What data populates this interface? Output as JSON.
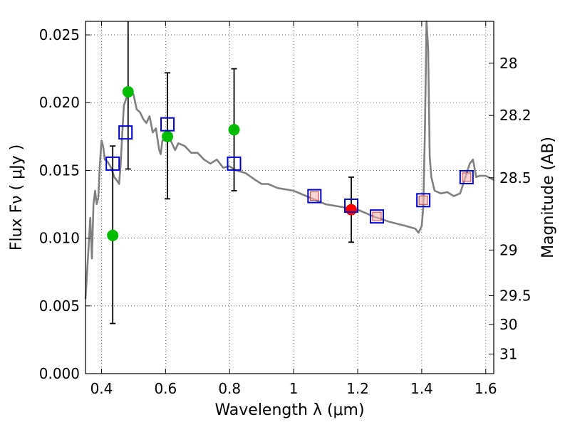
{
  "chart_data": {
    "type": "scatter",
    "xlabel": "Wavelength  λ (μm)",
    "ylabel": "Flux  Fν  ( μJy )",
    "y2label": "Magnitude (AB)",
    "xlim": [
      0.35,
      1.625
    ],
    "ylim": [
      0.0,
      0.026
    ],
    "grid": true,
    "x_ticks": [
      0.4,
      0.6,
      0.8,
      1.0,
      1.2,
      1.4,
      1.6
    ],
    "x_tick_labels": [
      "0.4",
      "0.6",
      "0.8",
      "1",
      "1.2",
      "1.4",
      "1.6"
    ],
    "y_ticks": [
      0.0,
      0.005,
      0.01,
      0.015,
      0.02,
      0.025
    ],
    "y_tick_labels": [
      "0.000",
      "0.005",
      "0.010",
      "0.015",
      "0.020",
      "0.025"
    ],
    "y2_ticks": [
      28,
      28.2,
      28.5,
      29,
      29.5,
      30,
      31
    ],
    "y2_tick_labels": [
      "28",
      "28.2",
      "28.5",
      "29",
      "29.5",
      "30",
      "31"
    ],
    "colors": {
      "model": "#808080",
      "detection": "#00bb00",
      "highlight": "#ff0000",
      "model_box": "#0000cc",
      "model_box_inner": "#cc4444",
      "errorbar": "#000000"
    },
    "series": [
      {
        "name": "model spectrum",
        "kind": "line",
        "x": [
          0.35,
          0.36,
          0.365,
          0.37,
          0.375,
          0.38,
          0.385,
          0.39,
          0.395,
          0.4,
          0.405,
          0.41,
          0.42,
          0.43,
          0.44,
          0.45,
          0.455,
          0.46,
          0.465,
          0.47,
          0.48,
          0.49,
          0.5,
          0.51,
          0.52,
          0.53,
          0.54,
          0.55,
          0.56,
          0.57,
          0.58,
          0.585,
          0.59,
          0.6,
          0.61,
          0.62,
          0.63,
          0.64,
          0.66,
          0.68,
          0.7,
          0.72,
          0.74,
          0.76,
          0.78,
          0.8,
          0.82,
          0.85,
          0.88,
          0.9,
          0.92,
          0.95,
          1.0,
          1.05,
          1.1,
          1.15,
          1.2,
          1.25,
          1.3,
          1.35,
          1.38,
          1.39,
          1.4,
          1.405,
          1.41,
          1.415,
          1.42,
          1.425,
          1.43,
          1.44,
          1.46,
          1.48,
          1.5,
          1.52,
          1.55,
          1.56,
          1.57,
          1.58,
          1.6,
          1.625
        ],
        "y": [
          0.0055,
          0.0095,
          0.0115,
          0.0085,
          0.0125,
          0.0135,
          0.0125,
          0.013,
          0.0155,
          0.0172,
          0.0168,
          0.0158,
          0.0156,
          0.0152,
          0.0145,
          0.0142,
          0.014,
          0.0155,
          0.0178,
          0.0198,
          0.0205,
          0.0208,
          0.0206,
          0.0195,
          0.0193,
          0.0188,
          0.0185,
          0.019,
          0.0178,
          0.0181,
          0.0165,
          0.0162,
          0.0172,
          0.0173,
          0.0175,
          0.017,
          0.0165,
          0.017,
          0.0168,
          0.0163,
          0.0163,
          0.0158,
          0.0155,
          0.0158,
          0.0152,
          0.0153,
          0.015,
          0.0148,
          0.0143,
          0.014,
          0.014,
          0.0137,
          0.0135,
          0.013,
          0.0125,
          0.0123,
          0.0121,
          0.0116,
          0.0112,
          0.0109,
          0.0107,
          0.0104,
          0.0109,
          0.0123,
          0.018,
          0.026,
          0.024,
          0.016,
          0.0145,
          0.0135,
          0.0133,
          0.0134,
          0.0131,
          0.0133,
          0.0155,
          0.0158,
          0.0145,
          0.0146,
          0.0146,
          0.0143
        ]
      },
      {
        "name": "photometry",
        "kind": "scatter",
        "marker": "circle",
        "x": [
          0.435,
          0.483,
          0.606,
          0.814
        ],
        "y": [
          0.0102,
          0.0208,
          0.0175,
          0.018
        ]
      },
      {
        "name": "highlight",
        "kind": "scatter",
        "marker": "circle",
        "x": [
          1.18
        ],
        "y": [
          0.0121
        ]
      },
      {
        "name": "model magnitudes",
        "kind": "scatter",
        "marker": "square",
        "x": [
          0.435,
          0.475,
          0.606,
          0.814,
          1.065,
          1.18,
          1.26,
          1.405,
          1.54
        ],
        "y": [
          0.0155,
          0.0178,
          0.0184,
          0.0155,
          0.0131,
          0.0124,
          0.0116,
          0.0128,
          0.0145
        ]
      },
      {
        "name": "model magnitudes (filled)",
        "kind": "scatter",
        "marker": "inner-square",
        "x": [
          1.065,
          1.26,
          1.405,
          1.54
        ],
        "y": [
          0.0131,
          0.0116,
          0.0128,
          0.0145
        ]
      },
      {
        "name": "error bars",
        "kind": "errorbar",
        "x": [
          0.435,
          0.483,
          0.606,
          0.814,
          1.18
        ],
        "ylow": [
          0.0037,
          0.0151,
          0.0129,
          0.0135,
          0.0097
        ],
        "yhigh": [
          0.0168,
          0.0265,
          0.0222,
          0.0225,
          0.0145
        ]
      }
    ]
  }
}
